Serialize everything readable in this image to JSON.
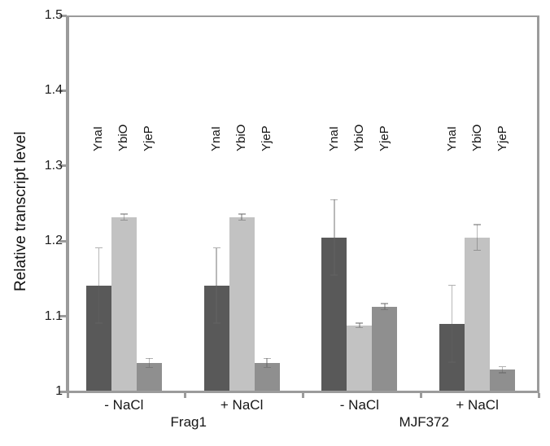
{
  "chart_data": {
    "type": "bar",
    "title": "",
    "ylabel": "Relative transcript level",
    "xlabel": "",
    "ylim": [
      1,
      1.5
    ],
    "ytick_labels": [
      "1",
      "1.1",
      "1.2",
      "1.3",
      "1.4",
      "1.5"
    ],
    "grid": false,
    "legend_position": "rotated-labels-above-bars",
    "series_labels": [
      "YnaI",
      "YbiO",
      "YjeP"
    ],
    "bar_colors": [
      "#595959",
      "#c2c2c2",
      "#8f8f8f"
    ],
    "axis_color": "#9b9b9b",
    "text_color": "#1d1d1d",
    "error_bars": true,
    "categories": [
      "- NaCl",
      "+ NaCl",
      "- NaCl",
      "+ NaCl"
    ],
    "groups": [
      {
        "strain": "Frag1",
        "condition": "- NaCl",
        "values": [
          1.141,
          1.232,
          1.038
        ],
        "errors": [
          0.05,
          0.004,
          0.006
        ]
      },
      {
        "strain": "Frag1",
        "condition": "+ NaCl",
        "values": [
          1.141,
          1.232,
          1.038
        ],
        "errors": [
          0.05,
          0.004,
          0.006
        ]
      },
      {
        "strain": "MJF372",
        "condition": "- NaCl",
        "values": [
          1.205,
          1.088,
          1.113
        ],
        "errors": [
          0.05,
          0.003,
          0.004
        ]
      },
      {
        "strain": "MJF372",
        "condition": "+ NaCl",
        "values": [
          1.09,
          1.205,
          1.029
        ],
        "errors": [
          0.051,
          0.017,
          0.004
        ]
      }
    ],
    "strain_groups": [
      {
        "label": "Frag1",
        "spans_groups": [
          0,
          1
        ]
      },
      {
        "label": "MJF372",
        "spans_groups": [
          2,
          3
        ]
      }
    ]
  }
}
